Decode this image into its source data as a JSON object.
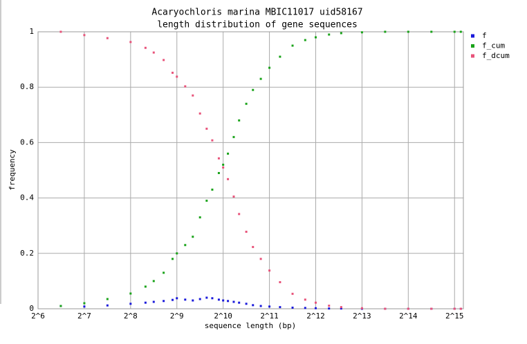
{
  "chart_data": {
    "type": "line",
    "title": "Acaryochloris marina MBIC11017 uid58167",
    "subtitle": "length distribution of gene sequences",
    "x_label": "sequence length (bp)",
    "y_label": "frequency",
    "xscale": "log2",
    "grid": true,
    "legend": "right",
    "x": [
      90,
      128,
      181,
      256,
      320,
      362,
      420,
      480,
      512,
      580,
      650,
      724,
      800,
      870,
      960,
      1024,
      1100,
      1200,
      1300,
      1448,
      1600,
      1800,
      2048,
      2400,
      2896,
      3500,
      4096,
      5000,
      6000,
      8192,
      11585,
      16384,
      23170,
      32768,
      36000
    ],
    "series": [
      {
        "name": "f",
        "color": "#1a1adb",
        "values": [
          0.01,
          0.008,
          0.012,
          0.018,
          0.022,
          0.025,
          0.028,
          0.032,
          0.038,
          0.033,
          0.03,
          0.035,
          0.04,
          0.038,
          0.033,
          0.03,
          0.028,
          0.025,
          0.022,
          0.018,
          0.013,
          0.01,
          0.008,
          0.006,
          0.004,
          0.003,
          0.002,
          0.001,
          0.001,
          0,
          0,
          0,
          0,
          0,
          0
        ]
      },
      {
        "name": "f_cum",
        "color": "#1aa31a",
        "values": [
          0.01,
          0.02,
          0.035,
          0.055,
          0.08,
          0.1,
          0.13,
          0.18,
          0.2,
          0.23,
          0.26,
          0.33,
          0.39,
          0.43,
          0.49,
          0.52,
          0.56,
          0.62,
          0.68,
          0.74,
          0.79,
          0.83,
          0.87,
          0.91,
          0.95,
          0.97,
          0.98,
          0.99,
          0.995,
          0.998,
          1,
          1,
          1,
          1,
          1
        ]
      },
      {
        "name": "f_dcum",
        "color": "#e8537a",
        "values": [
          1,
          0.988,
          0.977,
          0.963,
          0.942,
          0.925,
          0.898,
          0.852,
          0.838,
          0.803,
          0.77,
          0.705,
          0.65,
          0.608,
          0.543,
          0.51,
          0.468,
          0.405,
          0.342,
          0.278,
          0.223,
          0.18,
          0.138,
          0.096,
          0.054,
          0.033,
          0.022,
          0.011,
          0.006,
          0.002,
          0,
          0,
          0,
          0,
          0
        ]
      }
    ],
    "xlim": [
      64,
      37400
    ],
    "xticks": [
      {
        "value": 64,
        "label": "2^6"
      },
      {
        "value": 128,
        "label": "2^7"
      },
      {
        "value": 256,
        "label": "2^8"
      },
      {
        "value": 512,
        "label": "2^9"
      },
      {
        "value": 1024,
        "label": "2^10"
      },
      {
        "value": 2048,
        "label": "2^11"
      },
      {
        "value": 4096,
        "label": "2^12"
      },
      {
        "value": 8192,
        "label": "2^13"
      },
      {
        "value": 16384,
        "label": "2^14"
      },
      {
        "value": 32768,
        "label": "2^15"
      }
    ],
    "ylim": [
      0,
      1
    ],
    "yticks": [
      0,
      0.2,
      0.4,
      0.6,
      0.8,
      1
    ]
  }
}
